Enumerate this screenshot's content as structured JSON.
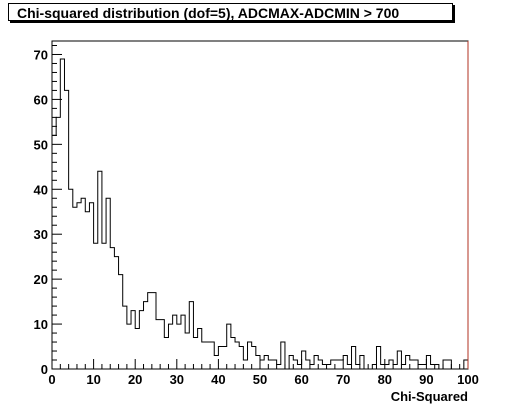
{
  "chart_data": {
    "type": "bar",
    "title": "Chi-squared distribution (dof=5), ADCMAX-ADCMIN > 700",
    "xlabel": "Chi-Squared",
    "ylabel": "",
    "style": "histogram-step",
    "bin_width": 1,
    "xlim": [
      0,
      100
    ],
    "ylim": [
      0,
      73
    ],
    "x_tick_labels": [
      "0",
      "10",
      "20",
      "30",
      "40",
      "50",
      "60",
      "70",
      "80",
      "90",
      "100"
    ],
    "y_tick_labels": [
      "0",
      "10",
      "20",
      "30",
      "40",
      "50",
      "60",
      "70"
    ],
    "x_ticks": [
      0,
      10,
      20,
      30,
      40,
      50,
      60,
      70,
      80,
      90,
      100
    ],
    "y_ticks": [
      0,
      10,
      20,
      30,
      40,
      50,
      60,
      70
    ],
    "grid": false,
    "legend": "none",
    "values": [
      52,
      56,
      69,
      62,
      40,
      36,
      37,
      38,
      35,
      37,
      28,
      44,
      28,
      38,
      27,
      25,
      21,
      14,
      10,
      13,
      9,
      13,
      15,
      17,
      17,
      11,
      11,
      7,
      10,
      12,
      10,
      12,
      8,
      15,
      7,
      9,
      6,
      6,
      6,
      3,
      5,
      5,
      10,
      7,
      6,
      5,
      2,
      6,
      5,
      3,
      2,
      3,
      2,
      2,
      1,
      6,
      0,
      3,
      2,
      1,
      4,
      2,
      1,
      3,
      2,
      1,
      1,
      2,
      2,
      2,
      3,
      1,
      5,
      1,
      3,
      0,
      0,
      1,
      5,
      1,
      1,
      2,
      1,
      4,
      1,
      3,
      2,
      2,
      1,
      1,
      3,
      1,
      1,
      0,
      2,
      2,
      0,
      0,
      0,
      2
    ],
    "colors": {
      "line": "#000000",
      "frame": "#000000",
      "right_edge": "#b03020",
      "background": "#ffffff"
    }
  }
}
